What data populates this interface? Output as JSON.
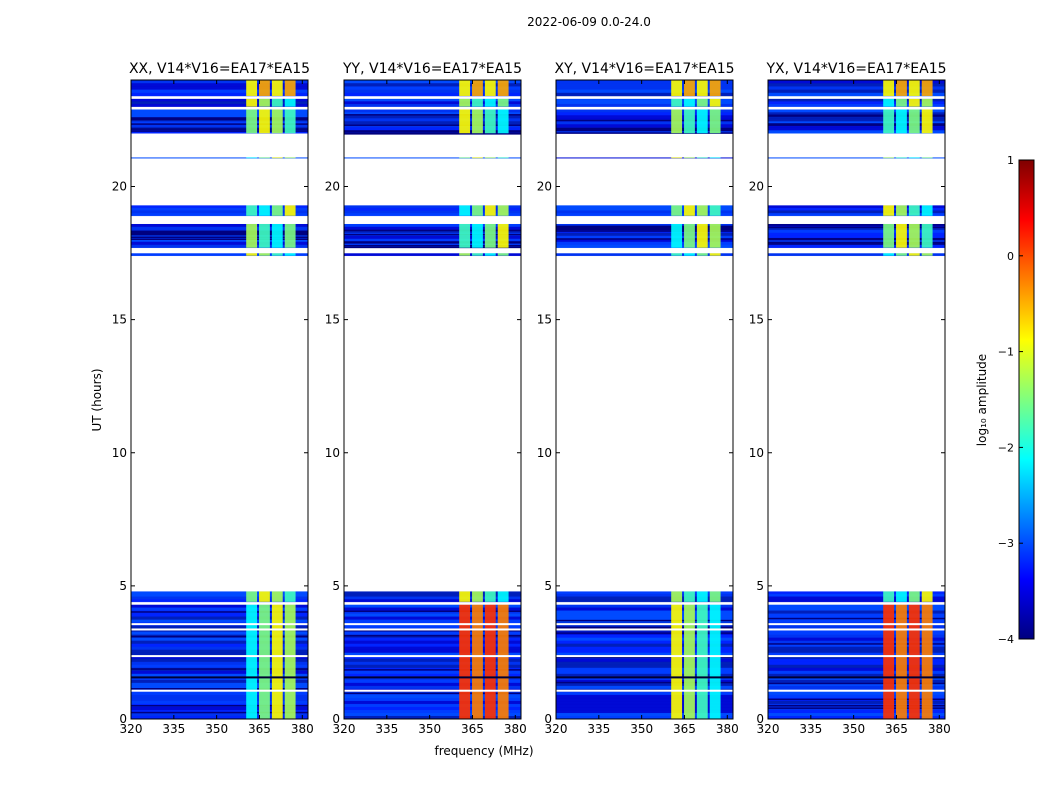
{
  "chart_data": {
    "type": "heatmap",
    "suptitle": "2022-06-09 0.0-24.0",
    "xlabel": "frequency (MHz)",
    "ylabel": "UT (hours)",
    "xlim": [
      320,
      382
    ],
    "ylim": [
      0,
      24
    ],
    "xticks": [
      "320",
      "335",
      "350",
      "365",
      "380"
    ],
    "yticks": [
      "0",
      "5",
      "10",
      "15",
      "20"
    ],
    "band_start_mhz": 360,
    "band_end_mhz": 378,
    "band_channel_edges_mhz": [
      360,
      364.5,
      369,
      373.5,
      378
    ],
    "data_rows_hours": [
      [
        0.0,
        4.3
      ],
      [
        4.4,
        4.8
      ],
      [
        17.4,
        17.5
      ],
      [
        17.7,
        18.6
      ],
      [
        18.9,
        19.3
      ],
      [
        21.1,
        21.1
      ],
      [
        22.0,
        22.9
      ],
      [
        23.0,
        23.3
      ],
      [
        23.4,
        24.0
      ]
    ],
    "panels": [
      {
        "title": "XX, V14*V16=EA17*EA15"
      },
      {
        "title": "YY, V14*V16=EA17*EA15"
      },
      {
        "title": "XY, V14*V16=EA17*EA15"
      },
      {
        "title": "YX, V14*V16=EA17*EA15"
      }
    ],
    "colorbar": {
      "label": "log₁₀ amplitude",
      "range": [
        -4,
        1
      ],
      "ticks": [
        "−4",
        "−3",
        "−2",
        "−1",
        "0",
        "1"
      ],
      "colormap": "jet",
      "colors": [
        "#00007f",
        "#0000ff",
        "#007fff",
        "#00ffff",
        "#7fff7f",
        "#ffff00",
        "#ff7f00",
        "#ff0000",
        "#7f0000"
      ]
    }
  }
}
